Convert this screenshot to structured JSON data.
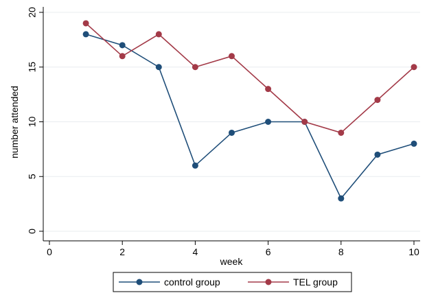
{
  "chart_data": {
    "type": "line",
    "xlabel": "week",
    "ylabel": "number attended",
    "xlim": [
      0,
      10
    ],
    "ylim": [
      0,
      20
    ],
    "xticks": [
      0,
      2,
      4,
      6,
      8,
      10
    ],
    "yticks": [
      0,
      5,
      10,
      15,
      20
    ],
    "grid": true,
    "legend_position": "bottom",
    "x": [
      1,
      2,
      3,
      4,
      5,
      6,
      7,
      8,
      9,
      10
    ],
    "series": [
      {
        "name": "control group",
        "color": "#1f4e79",
        "values": [
          18,
          17,
          15,
          6,
          9,
          10,
          10,
          3,
          7,
          8
        ]
      },
      {
        "name": "TEL group",
        "color": "#a33a48",
        "values": [
          19,
          16,
          18,
          15,
          16,
          13,
          10,
          9,
          12,
          15
        ]
      }
    ]
  }
}
